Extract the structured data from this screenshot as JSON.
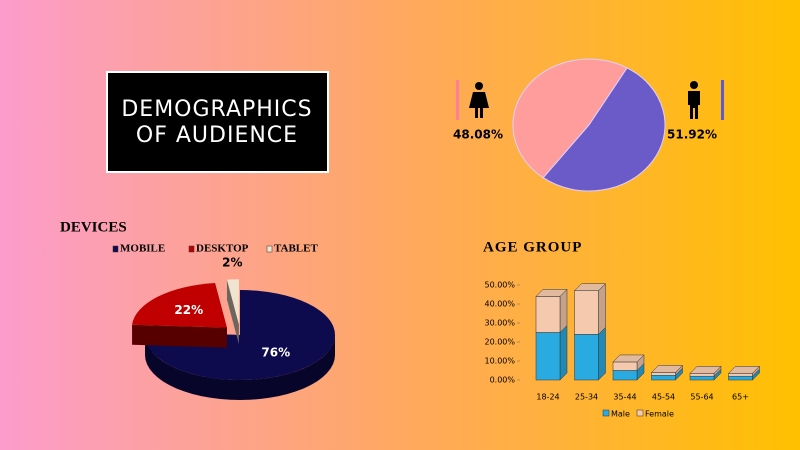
{
  "header": {
    "title_lines": [
      "DEMOGRAPHICS",
      "OF AUDIENCE"
    ]
  },
  "chart_data": [
    {
      "type": "pie",
      "values": [
        48.08,
        51.92
      ],
      "value_labels": [
        "48.08%",
        "51.92%"
      ],
      "colors": [
        "#ff9c9c",
        "#6b5bc9"
      ]
    },
    {
      "type": "pie",
      "title": "DEVICES",
      "categories": [
        "MOBILE",
        "DESKTOP",
        "TABLET"
      ],
      "values": [
        76,
        22,
        2
      ],
      "value_labels": [
        "76%",
        "22%",
        "2%"
      ],
      "colors": [
        "#0d0a4d",
        "#c00000",
        "#efe4d0"
      ],
      "three_d": true,
      "legend": "top"
    },
    {
      "type": "bar",
      "stacked": true,
      "title": "AGE GROUP",
      "categories": [
        "18-24",
        "25-34",
        "35-44",
        "45-54",
        "55-64",
        "65+"
      ],
      "series": [
        {
          "name": "Male",
          "color": "#29abe2",
          "values": [
            25,
            24,
            5,
            2.5,
            2,
            2
          ]
        },
        {
          "name": "Female",
          "color": "#f5c9ad",
          "values": [
            19,
            23,
            4.5,
            1.5,
            1.5,
            1.5
          ]
        }
      ],
      "ylim": [
        0,
        50
      ],
      "yticks": [
        {
          "value": 0,
          "label": "0.00%"
        },
        {
          "value": 10,
          "label": "10.00%"
        },
        {
          "value": 20,
          "label": "20.00%"
        },
        {
          "value": 30,
          "label": "30.00%"
        },
        {
          "value": 40,
          "label": "40.00%"
        },
        {
          "value": 50,
          "label": "50.00%"
        }
      ],
      "legend": "bottom"
    }
  ]
}
